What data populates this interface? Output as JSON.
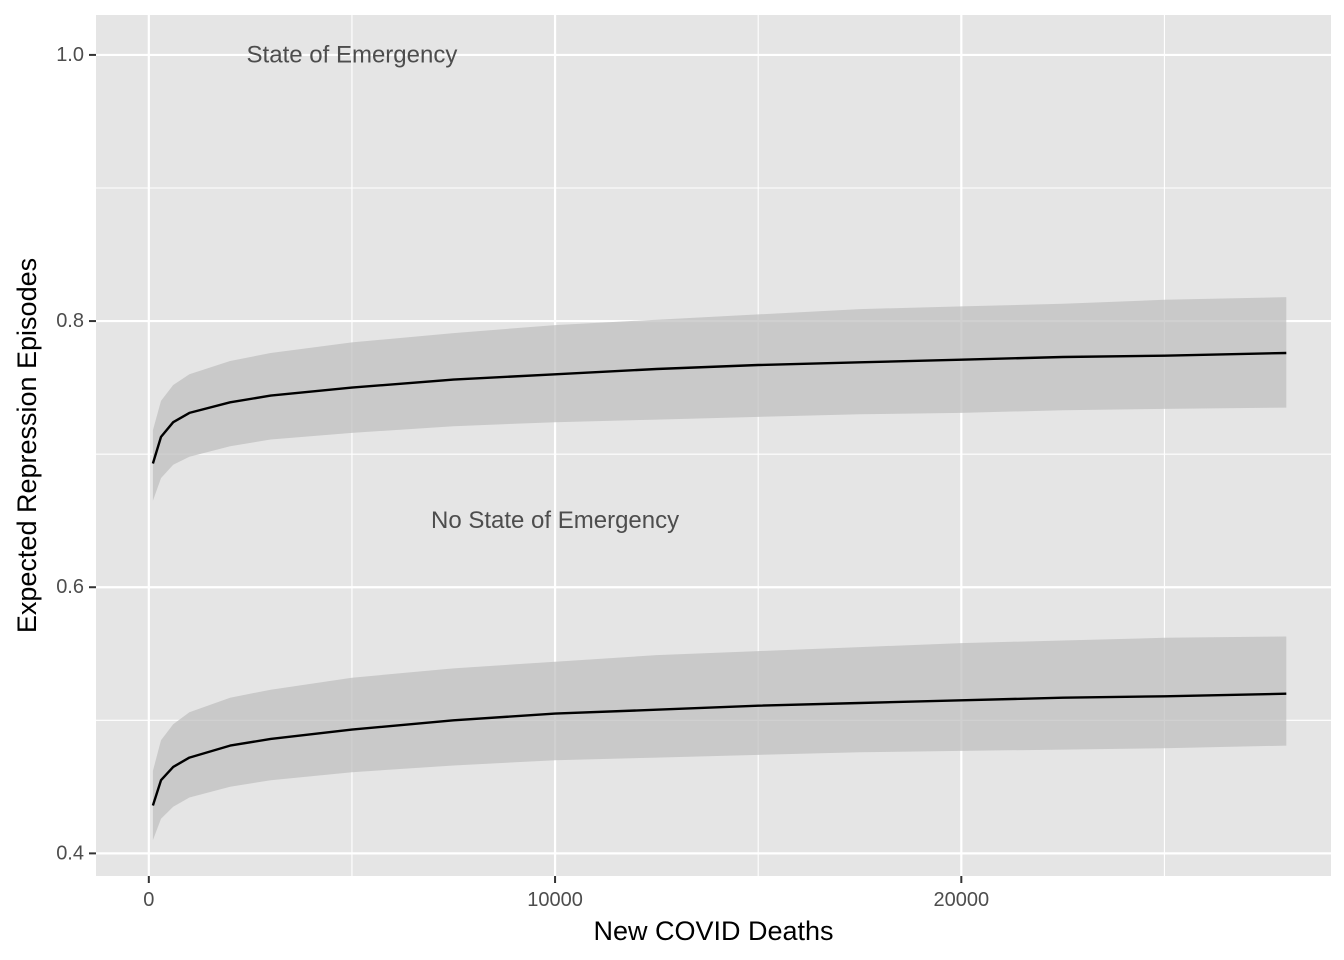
{
  "chart_data": {
    "type": "line",
    "title": "",
    "xlabel": "New COVID Deaths",
    "ylabel": "Expected Repression Episodes",
    "xlim": [
      -1300,
      29100
    ],
    "ylim": [
      0.383,
      1.03
    ],
    "x_ticks": [
      0,
      10000,
      20000
    ],
    "y_ticks": [
      0.4,
      0.6,
      0.8,
      1.0
    ],
    "y_tick_labels": [
      "0.4",
      "0.6",
      "0.8",
      "1.0"
    ],
    "grid": true,
    "legend": "none",
    "series": [
      {
        "x": [
          100,
          300,
          600,
          1000,
          2000,
          3000,
          5000,
          7500,
          10000,
          12500,
          15000,
          17500,
          20000,
          22500,
          25000,
          28000
        ],
        "y": [
          0.693,
          0.713,
          0.724,
          0.731,
          0.739,
          0.744,
          0.75,
          0.756,
          0.76,
          0.764,
          0.767,
          0.769,
          0.771,
          0.773,
          0.774,
          0.776
        ],
        "lower": [
          0.665,
          0.682,
          0.692,
          0.698,
          0.706,
          0.711,
          0.716,
          0.721,
          0.724,
          0.726,
          0.728,
          0.73,
          0.731,
          0.733,
          0.734,
          0.735
        ],
        "upper": [
          0.718,
          0.74,
          0.752,
          0.76,
          0.77,
          0.776,
          0.784,
          0.791,
          0.797,
          0.801,
          0.805,
          0.809,
          0.811,
          0.813,
          0.816,
          0.818
        ]
      },
      {
        "x": [
          100,
          300,
          600,
          1000,
          2000,
          3000,
          5000,
          7500,
          10000,
          12500,
          15000,
          17500,
          20000,
          22500,
          25000,
          28000
        ],
        "y": [
          0.436,
          0.455,
          0.465,
          0.472,
          0.481,
          0.486,
          0.493,
          0.5,
          0.505,
          0.508,
          0.511,
          0.513,
          0.515,
          0.517,
          0.518,
          0.52
        ],
        "lower": [
          0.41,
          0.426,
          0.435,
          0.442,
          0.45,
          0.455,
          0.461,
          0.466,
          0.47,
          0.472,
          0.474,
          0.476,
          0.477,
          0.478,
          0.479,
          0.481
        ],
        "upper": [
          0.462,
          0.485,
          0.497,
          0.506,
          0.517,
          0.523,
          0.532,
          0.539,
          0.544,
          0.549,
          0.552,
          0.555,
          0.558,
          0.56,
          0.562,
          0.563
        ]
      }
    ],
    "annotations": [
      {
        "text": "State of Emergency",
        "x": 5000,
        "y": 1.0
      },
      {
        "text": "No State of Emergency",
        "x": 10000,
        "y": 0.65
      }
    ],
    "colors": {
      "panel": "#e5e5e5",
      "grid": "#ffffff",
      "ribbon": "#bebebe",
      "line": "#000000"
    }
  }
}
